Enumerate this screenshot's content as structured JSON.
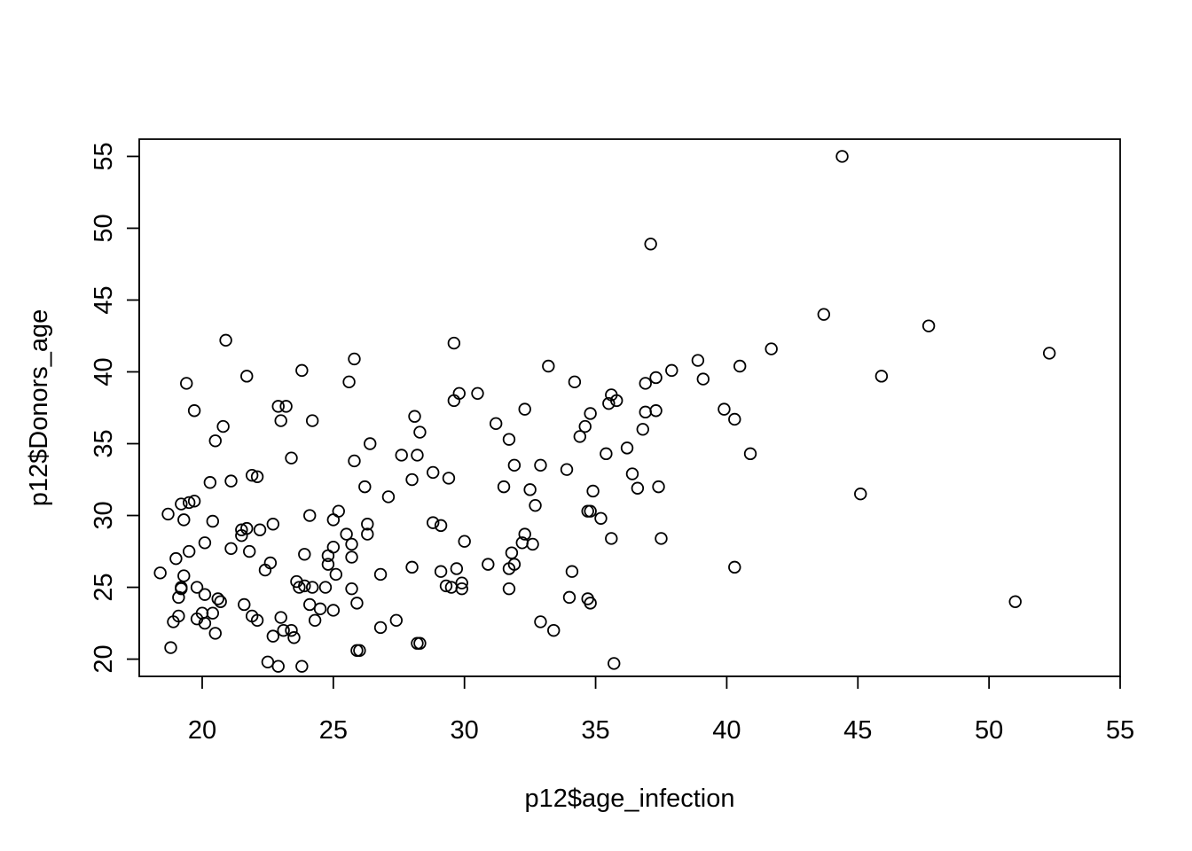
{
  "chart_data": {
    "type": "scatter",
    "xlabel": "p12$age_infection",
    "ylabel": "p12$Donors_age",
    "xlim": [
      17.6,
      55.0
    ],
    "ylim": [
      18.8,
      56.2
    ],
    "xticks": [
      20,
      25,
      30,
      35,
      40,
      45,
      50,
      55
    ],
    "yticks": [
      20,
      25,
      30,
      35,
      40,
      45,
      50,
      55
    ],
    "grid": false,
    "marker": "open-circle",
    "points": [
      [
        18.4,
        26.0
      ],
      [
        18.7,
        30.1
      ],
      [
        18.8,
        20.8
      ],
      [
        18.9,
        22.6
      ],
      [
        19.0,
        27.0
      ],
      [
        19.1,
        23.0
      ],
      [
        19.1,
        24.3
      ],
      [
        19.2,
        24.9
      ],
      [
        19.2,
        25.0
      ],
      [
        19.2,
        30.8
      ],
      [
        19.3,
        25.8
      ],
      [
        19.3,
        29.7
      ],
      [
        19.4,
        39.2
      ],
      [
        19.5,
        30.9
      ],
      [
        19.5,
        27.5
      ],
      [
        19.7,
        37.3
      ],
      [
        19.7,
        31.0
      ],
      [
        19.8,
        22.8
      ],
      [
        19.8,
        25.0
      ],
      [
        20.0,
        23.2
      ],
      [
        20.1,
        24.5
      ],
      [
        20.1,
        22.5
      ],
      [
        20.1,
        28.1
      ],
      [
        20.3,
        32.3
      ],
      [
        20.4,
        23.2
      ],
      [
        20.4,
        29.6
      ],
      [
        20.5,
        35.2
      ],
      [
        20.5,
        21.8
      ],
      [
        20.6,
        24.2
      ],
      [
        20.7,
        24.0
      ],
      [
        20.8,
        36.2
      ],
      [
        20.9,
        42.2
      ],
      [
        21.1,
        32.4
      ],
      [
        21.1,
        27.7
      ],
      [
        21.5,
        28.6
      ],
      [
        21.5,
        29.0
      ],
      [
        21.6,
        23.8
      ],
      [
        21.7,
        39.7
      ],
      [
        21.7,
        29.1
      ],
      [
        21.8,
        27.5
      ],
      [
        21.9,
        32.8
      ],
      [
        21.9,
        23.0
      ],
      [
        22.1,
        22.7
      ],
      [
        22.1,
        32.7
      ],
      [
        22.2,
        29.0
      ],
      [
        22.4,
        26.2
      ],
      [
        22.5,
        19.8
      ],
      [
        22.6,
        26.7
      ],
      [
        22.7,
        29.4
      ],
      [
        22.7,
        21.6
      ],
      [
        22.9,
        19.5
      ],
      [
        22.9,
        37.6
      ],
      [
        23.0,
        36.6
      ],
      [
        23.0,
        22.9
      ],
      [
        23.1,
        22.0
      ],
      [
        23.2,
        37.6
      ],
      [
        23.4,
        34.0
      ],
      [
        23.4,
        22.0
      ],
      [
        23.5,
        21.5
      ],
      [
        23.6,
        25.4
      ],
      [
        23.7,
        25.0
      ],
      [
        23.8,
        40.1
      ],
      [
        23.9,
        27.3
      ],
      [
        23.8,
        19.5
      ],
      [
        23.9,
        25.1
      ],
      [
        24.1,
        23.8
      ],
      [
        24.1,
        30.0
      ],
      [
        24.2,
        36.6
      ],
      [
        24.2,
        25.0
      ],
      [
        24.3,
        22.7
      ],
      [
        24.5,
        23.5
      ],
      [
        24.7,
        25.0
      ],
      [
        24.8,
        27.2
      ],
      [
        24.8,
        26.6
      ],
      [
        25.0,
        29.7
      ],
      [
        25.0,
        27.8
      ],
      [
        25.0,
        23.4
      ],
      [
        25.1,
        25.9
      ],
      [
        25.2,
        30.3
      ],
      [
        25.5,
        28.7
      ],
      [
        25.6,
        39.3
      ],
      [
        25.7,
        27.1
      ],
      [
        25.7,
        28.0
      ],
      [
        25.7,
        24.9
      ],
      [
        25.8,
        33.8
      ],
      [
        25.8,
        40.9
      ],
      [
        25.9,
        23.9
      ],
      [
        25.9,
        20.6
      ],
      [
        26.0,
        20.6
      ],
      [
        26.2,
        32.0
      ],
      [
        26.3,
        29.4
      ],
      [
        26.3,
        28.7
      ],
      [
        26.4,
        35.0
      ],
      [
        26.8,
        22.2
      ],
      [
        26.8,
        25.9
      ],
      [
        27.1,
        31.3
      ],
      [
        27.4,
        22.7
      ],
      [
        27.6,
        34.2
      ],
      [
        28.0,
        32.5
      ],
      [
        28.0,
        26.4
      ],
      [
        28.1,
        36.9
      ],
      [
        28.2,
        21.1
      ],
      [
        28.2,
        34.2
      ],
      [
        28.3,
        35.8
      ],
      [
        28.3,
        21.1
      ],
      [
        28.8,
        33.0
      ],
      [
        28.8,
        29.5
      ],
      [
        29.1,
        26.1
      ],
      [
        29.1,
        29.3
      ],
      [
        29.3,
        25.1
      ],
      [
        29.4,
        32.6
      ],
      [
        29.5,
        25.0
      ],
      [
        29.6,
        42.0
      ],
      [
        29.6,
        38.0
      ],
      [
        29.7,
        26.3
      ],
      [
        29.8,
        38.5
      ],
      [
        29.9,
        25.3
      ],
      [
        29.9,
        24.9
      ],
      [
        30.0,
        28.2
      ],
      [
        30.5,
        38.5
      ],
      [
        30.9,
        26.6
      ],
      [
        31.2,
        36.4
      ],
      [
        31.5,
        32.0
      ],
      [
        31.7,
        26.3
      ],
      [
        31.7,
        24.9
      ],
      [
        31.7,
        35.3
      ],
      [
        31.8,
        27.4
      ],
      [
        31.9,
        33.5
      ],
      [
        31.9,
        26.6
      ],
      [
        32.2,
        28.1
      ],
      [
        32.3,
        37.4
      ],
      [
        32.3,
        28.7
      ],
      [
        32.5,
        31.8
      ],
      [
        32.6,
        28.0
      ],
      [
        32.7,
        30.7
      ],
      [
        32.9,
        33.5
      ],
      [
        32.9,
        22.6
      ],
      [
        33.2,
        40.4
      ],
      [
        33.4,
        22.0
      ],
      [
        33.9,
        33.2
      ],
      [
        34.0,
        24.3
      ],
      [
        34.1,
        26.1
      ],
      [
        34.2,
        39.3
      ],
      [
        34.4,
        35.5
      ],
      [
        34.6,
        36.2
      ],
      [
        34.7,
        30.3
      ],
      [
        34.7,
        24.2
      ],
      [
        34.8,
        23.9
      ],
      [
        34.8,
        37.1
      ],
      [
        34.8,
        30.3
      ],
      [
        34.9,
        31.7
      ],
      [
        35.2,
        29.8
      ],
      [
        35.4,
        34.3
      ],
      [
        35.5,
        37.8
      ],
      [
        35.6,
        28.4
      ],
      [
        35.6,
        38.4
      ],
      [
        35.7,
        19.7
      ],
      [
        35.8,
        38.0
      ],
      [
        36.2,
        34.7
      ],
      [
        36.4,
        32.9
      ],
      [
        36.6,
        31.9
      ],
      [
        36.8,
        36.0
      ],
      [
        36.9,
        39.2
      ],
      [
        36.9,
        37.2
      ],
      [
        37.1,
        48.9
      ],
      [
        37.3,
        37.3
      ],
      [
        37.3,
        39.6
      ],
      [
        37.4,
        32.0
      ],
      [
        37.5,
        28.4
      ],
      [
        37.9,
        40.1
      ],
      [
        38.9,
        40.8
      ],
      [
        39.1,
        39.5
      ],
      [
        39.9,
        37.4
      ],
      [
        40.3,
        36.7
      ],
      [
        40.3,
        26.4
      ],
      [
        40.5,
        40.4
      ],
      [
        40.9,
        34.3
      ],
      [
        41.7,
        41.6
      ],
      [
        43.7,
        44.0
      ],
      [
        44.4,
        55.0
      ],
      [
        45.1,
        31.5
      ],
      [
        45.9,
        39.7
      ],
      [
        47.7,
        43.2
      ],
      [
        51.0,
        24.0
      ],
      [
        52.3,
        41.3
      ]
    ]
  }
}
